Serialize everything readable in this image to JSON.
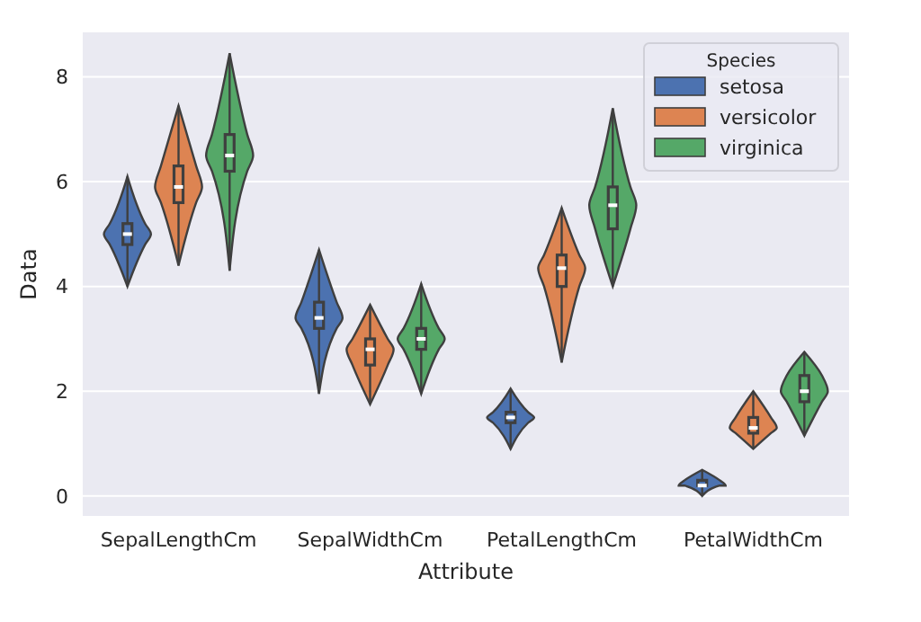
{
  "chart_data": {
    "type": "box",
    "xlabel": "Attribute",
    "ylabel": "Data",
    "legend_title": "Species",
    "legend": "top right",
    "grid": "y",
    "categories": [
      "SepalLengthCm",
      "SepalWidthCm",
      "PetalLengthCm",
      "PetalWidthCm"
    ],
    "ylim": [
      -0.38,
      8.85
    ],
    "yticks": [
      0,
      2,
      4,
      6,
      8
    ],
    "series": [
      {
        "name": "setosa",
        "color": "#4c72b0",
        "boxes": [
          {
            "low": 4.0,
            "q1": 4.8,
            "median": 5.0,
            "q3": 5.2,
            "high": 6.1
          },
          {
            "low": 1.95,
            "q1": 3.2,
            "median": 3.4,
            "q3": 3.7,
            "high": 4.7
          },
          {
            "low": 0.9,
            "q1": 1.4,
            "median": 1.5,
            "q3": 1.6,
            "high": 2.05
          },
          {
            "low": 0.0,
            "q1": 0.2,
            "median": 0.2,
            "q3": 0.3,
            "high": 0.5
          }
        ]
      },
      {
        "name": "versicolor",
        "color": "#dd8452",
        "boxes": [
          {
            "low": 4.4,
            "q1": 5.6,
            "median": 5.9,
            "q3": 6.3,
            "high": 7.45
          },
          {
            "low": 1.75,
            "q1": 2.5,
            "median": 2.8,
            "q3": 3.0,
            "high": 3.65
          },
          {
            "low": 2.55,
            "q1": 4.0,
            "median": 4.35,
            "q3": 4.6,
            "high": 5.5
          },
          {
            "low": 0.9,
            "q1": 1.2,
            "median": 1.3,
            "q3": 1.5,
            "high": 2.0
          }
        ]
      },
      {
        "name": "virginica",
        "color": "#55a868",
        "boxes": [
          {
            "low": 4.3,
            "q1": 6.2,
            "median": 6.5,
            "q3": 6.9,
            "high": 8.45
          },
          {
            "low": 1.95,
            "q1": 2.8,
            "median": 3.0,
            "q3": 3.2,
            "high": 4.05
          },
          {
            "low": 4.0,
            "q1": 5.1,
            "median": 5.55,
            "q3": 5.9,
            "high": 7.4
          },
          {
            "low": 1.15,
            "q1": 1.8,
            "median": 2.0,
            "q3": 2.3,
            "high": 2.75
          }
        ]
      }
    ]
  }
}
